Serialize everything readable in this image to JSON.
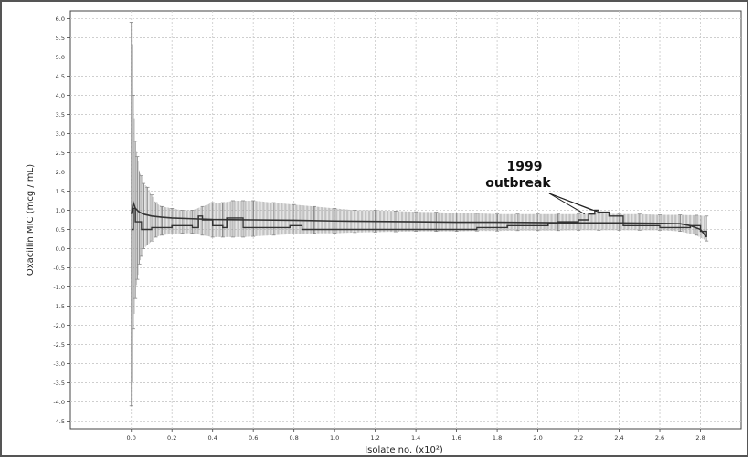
{
  "chart_data": {
    "type": "line",
    "title": "",
    "xlabel": "Isolate no. (x10²)",
    "ylabel": "Oxacillin MIC (mcg / mL)",
    "xlim": [
      -0.3,
      3.0
    ],
    "ylim": [
      -4.7,
      6.2
    ],
    "x_ticks": [
      "0.0",
      "0.2",
      "0.4",
      "0.6",
      "0.8",
      "1.0",
      "1.2",
      "1.4",
      "1.6",
      "1.8",
      "2.0",
      "2.2",
      "2.4",
      "2.6",
      "2.8"
    ],
    "y_ticks": [
      "6.0",
      "5.5",
      "5.0",
      "4.5",
      "4.0",
      "3.5",
      "3.0",
      "2.5",
      "2.0",
      "1.5",
      "1.0",
      "0.5",
      "0.0",
      "-0.5",
      "-1.0",
      "-1.5",
      "-2.0",
      "-2.5",
      "-3.0",
      "-3.5",
      "-4.0",
      "-4.5"
    ],
    "grid": true,
    "annotation": {
      "line1": "1999",
      "line2": "outbreak"
    },
    "series": [
      {
        "style": "smooth",
        "x": [
          0.0,
          0.01,
          0.02,
          0.04,
          0.06,
          0.1,
          0.15,
          0.2,
          0.3,
          0.4,
          0.6,
          0.8,
          1.0,
          1.2,
          1.4,
          1.6,
          1.8,
          2.0,
          2.2,
          2.4,
          2.6,
          2.7,
          2.75,
          2.8,
          2.83
        ],
        "y": [
          0.9,
          1.2,
          1.05,
          0.95,
          0.9,
          0.85,
          0.82,
          0.8,
          0.78,
          0.76,
          0.75,
          0.74,
          0.72,
          0.71,
          0.7,
          0.69,
          0.69,
          0.68,
          0.67,
          0.67,
          0.66,
          0.65,
          0.6,
          0.5,
          0.3
        ]
      },
      {
        "style": "step",
        "x": [
          0.0,
          0.01,
          0.02,
          0.05,
          0.1,
          0.2,
          0.3,
          0.33,
          0.35,
          0.4,
          0.45,
          0.47,
          0.55,
          0.7,
          0.78,
          0.84,
          1.12,
          1.7,
          1.85,
          2.05,
          2.1,
          2.2,
          2.25,
          2.28,
          2.3,
          2.35,
          2.42,
          2.6,
          2.75,
          2.8,
          2.83
        ],
        "y": [
          0.5,
          1.05,
          0.7,
          0.5,
          0.55,
          0.6,
          0.55,
          0.85,
          0.75,
          0.6,
          0.55,
          0.8,
          0.55,
          0.55,
          0.6,
          0.5,
          0.5,
          0.55,
          0.6,
          0.65,
          0.7,
          0.75,
          0.9,
          1.0,
          0.95,
          0.85,
          0.6,
          0.55,
          0.6,
          0.45,
          0.3
        ]
      }
    ],
    "error_bars": {
      "x": [
        0.0,
        0.01,
        0.02,
        0.03,
        0.04,
        0.05,
        0.06,
        0.08,
        0.1,
        0.12,
        0.15,
        0.2,
        0.25,
        0.3,
        0.35,
        0.4,
        0.45,
        0.5,
        0.55,
        0.6,
        0.7,
        0.8,
        0.9,
        1.0,
        1.1,
        1.2,
        1.3,
        1.4,
        1.5,
        1.6,
        1.7,
        1.8,
        1.9,
        2.0,
        2.1,
        2.2,
        2.3,
        2.4,
        2.5,
        2.6,
        2.7,
        2.78,
        2.83
      ],
      "upper": [
        5.9,
        4.0,
        2.8,
        2.4,
        2.0,
        1.9,
        1.7,
        1.6,
        1.4,
        1.2,
        1.1,
        1.05,
        1.0,
        1.0,
        1.1,
        1.2,
        1.2,
        1.25,
        1.25,
        1.25,
        1.2,
        1.15,
        1.1,
        1.05,
        1.0,
        1.0,
        0.98,
        0.96,
        0.95,
        0.93,
        0.92,
        0.9,
        0.9,
        0.9,
        0.9,
        0.9,
        0.92,
        0.9,
        0.9,
        0.88,
        0.88,
        0.87,
        0.85
      ],
      "lower": [
        -4.1,
        -2.1,
        -1.3,
        -0.8,
        -0.4,
        -0.2,
        0.0,
        0.1,
        0.2,
        0.3,
        0.35,
        0.38,
        0.4,
        0.4,
        0.35,
        0.3,
        0.3,
        0.3,
        0.3,
        0.32,
        0.35,
        0.38,
        0.4,
        0.4,
        0.42,
        0.43,
        0.44,
        0.45,
        0.45,
        0.45,
        0.46,
        0.46,
        0.47,
        0.47,
        0.47,
        0.48,
        0.48,
        0.48,
        0.48,
        0.48,
        0.45,
        0.35,
        0.2
      ]
    }
  }
}
